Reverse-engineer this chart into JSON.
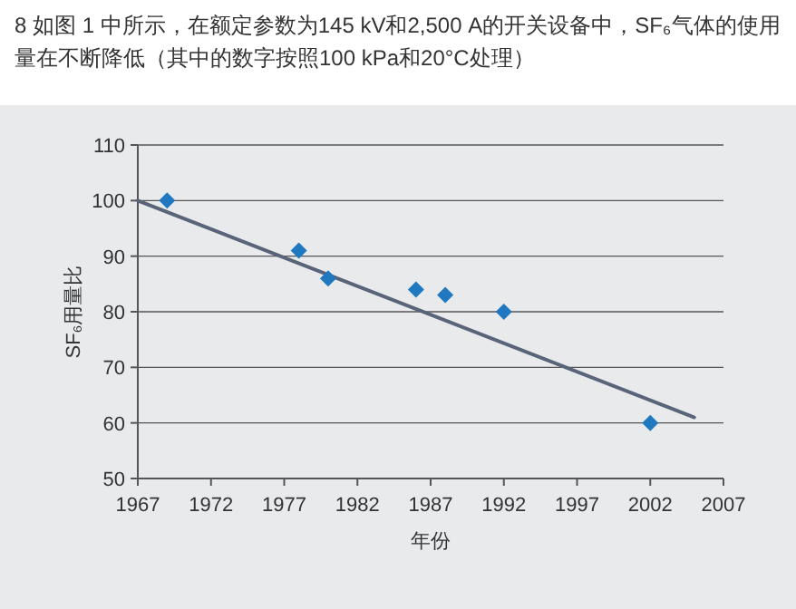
{
  "chart_data": {
    "type": "scatter",
    "title": "8 如图 1 中所示，在额定参数为145 kV和2,500 A的开关设备中，SF₆气体的使用量在不断降低（其中的数字按照100 kPa和20°C处理）",
    "xlabel": "年份",
    "ylabel": "SF₆用量比",
    "xlim": [
      1967,
      2007
    ],
    "xticks": [
      1967,
      1972,
      1977,
      1982,
      1987,
      1992,
      1997,
      2002,
      2007
    ],
    "ylim": [
      50,
      110
    ],
    "yticks": [
      50,
      60,
      70,
      80,
      90,
      100,
      110
    ],
    "grid": "y",
    "marker": "diamond",
    "series": [
      {
        "type": "line",
        "marker": "none",
        "color": "#5a6478",
        "x": [
          1967,
          2005
        ],
        "values": [
          100,
          61
        ]
      },
      {
        "color": "#1f78c0",
        "x": [
          1969,
          1978,
          1980,
          1986,
          1988,
          1992,
          2002
        ],
        "values": [
          100,
          91,
          86,
          84,
          83,
          80,
          60
        ]
      }
    ]
  }
}
